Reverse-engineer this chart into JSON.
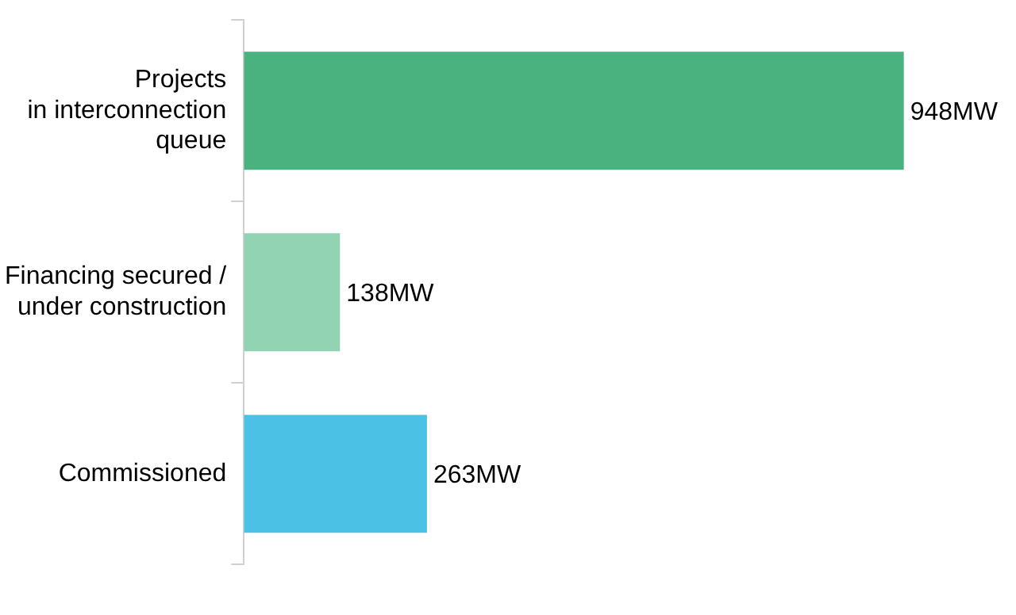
{
  "chart_data": {
    "type": "bar",
    "orientation": "horizontal",
    "categories": [
      "Projects\nin interconnection\nqueue",
      "Financing secured /\nunder construction",
      "Commissioned"
    ],
    "values": [
      948,
      138,
      263
    ],
    "colors": [
      "#4ab27f",
      "#92d3b4",
      "#4bc1e6"
    ],
    "value_labels": [
      "948MW",
      "138MW",
      "263MW"
    ],
    "legend": false
  }
}
